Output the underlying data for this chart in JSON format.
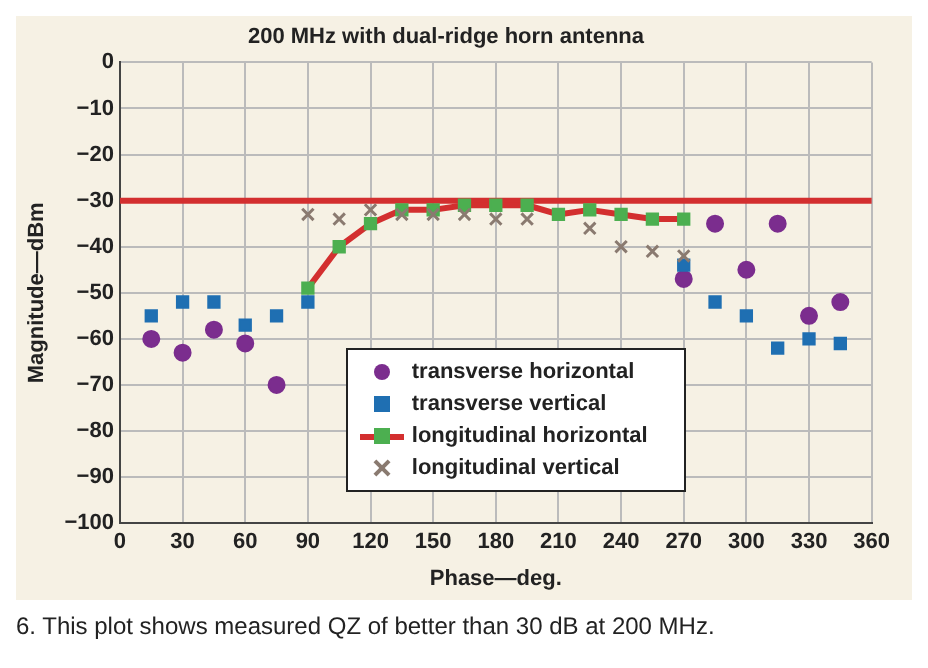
{
  "chart_data": {
    "type": "scatter",
    "title": "200 MHz with dual-ridge horn antenna",
    "xlabel": "Phase—deg.",
    "ylabel": "Magnitude—dBm",
    "xlim": [
      0,
      360
    ],
    "xticks": [
      0,
      30,
      60,
      90,
      120,
      150,
      180,
      210,
      240,
      270,
      300,
      330,
      360
    ],
    "ylim": [
      -100,
      0
    ],
    "yticks": [
      -100,
      -90,
      -80,
      -70,
      -60,
      -50,
      -40,
      -30,
      -20,
      -10,
      0
    ],
    "grid": true,
    "legend": "bottom",
    "series": [
      {
        "name": "transverse horizontal",
        "type": "scatter",
        "marker": "circle",
        "color": "#7b2d8e",
        "x": [
          15,
          30,
          45,
          60,
          75,
          270,
          285,
          300,
          315,
          330,
          345
        ],
        "values": [
          -60,
          -63,
          -58,
          -61,
          -70,
          -47,
          -35,
          -45,
          -35,
          -55,
          -52
        ]
      },
      {
        "name": "transverse vertical",
        "type": "scatter",
        "marker": "square",
        "color": "#1f6fb2",
        "x": [
          15,
          30,
          45,
          60,
          75,
          90,
          270,
          285,
          300,
          315,
          330,
          345
        ],
        "values": [
          -55,
          -52,
          -52,
          -57,
          -55,
          -52,
          -44,
          -52,
          -55,
          -62,
          -60,
          -61
        ]
      },
      {
        "name": "longitudinal horizontal",
        "type": "line",
        "marker": "square",
        "color": "#d32f2f",
        "colors": [
          "#4caf50",
          "#4caf50",
          "#4caf50",
          "#4caf50",
          "#4caf50",
          "#4caf50",
          "#4caf50",
          "#4caf50",
          "#4caf50",
          "#4caf50",
          "#4caf50",
          "#4caf50",
          "#4caf50"
        ],
        "x": [
          90,
          105,
          120,
          135,
          150,
          165,
          180,
          195,
          210,
          225,
          240,
          255,
          270
        ],
        "values": [
          -49,
          -40,
          -35,
          -32,
          -32,
          -31,
          -31,
          -31,
          -33,
          -32,
          -33,
          -34,
          -34
        ]
      },
      {
        "name": "longitudinal vertical",
        "type": "scatter",
        "marker": "cross",
        "color": "#8a7a70",
        "x": [
          90,
          105,
          120,
          135,
          150,
          165,
          180,
          195,
          225,
          240,
          255,
          270
        ],
        "values": [
          -33,
          -34,
          -32,
          -33,
          -33,
          -33,
          -34,
          -34,
          -36,
          -40,
          -41,
          -42
        ]
      }
    ],
    "ref_lines": [
      {
        "axis": "y",
        "value": -30,
        "color": "#d32f2f"
      }
    ],
    "annotations": [
      "6. This plot shows measured QZ of better than 30 dB at 200 MHz."
    ]
  }
}
